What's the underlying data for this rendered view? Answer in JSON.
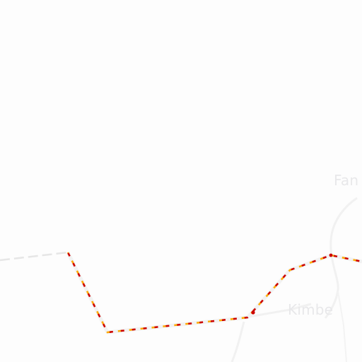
{
  "map": {
    "places": [
      {
        "name": "Fan"
      },
      {
        "name": "Kimbe"
      }
    ],
    "features": {
      "route_highlight": {
        "color": "#cc0000",
        "dash_color": "#ffaa00"
      },
      "border_line": {
        "color": "#e9e9e9",
        "style": "dashed"
      },
      "road": {
        "color": "#f0f0f0"
      }
    }
  }
}
